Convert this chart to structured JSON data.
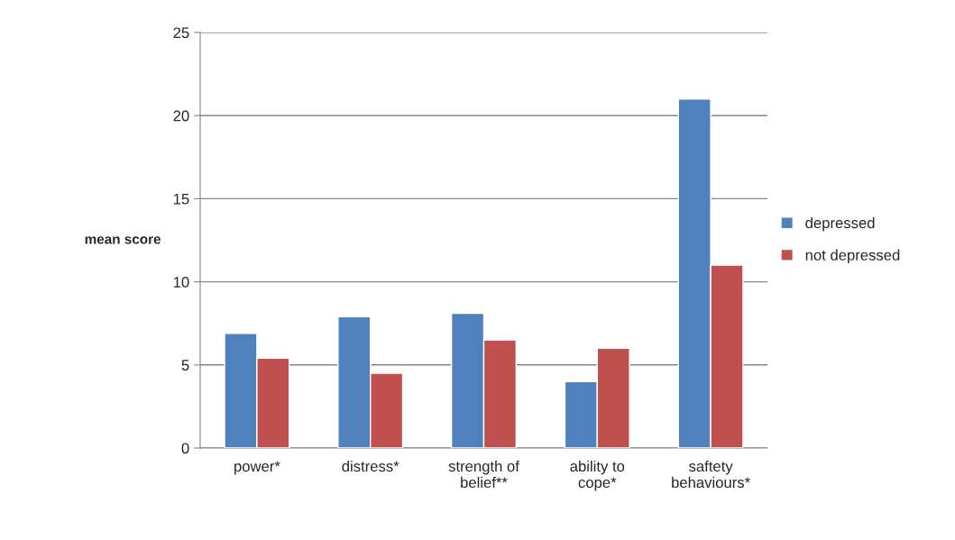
{
  "chart_data": {
    "type": "bar",
    "ylabel": "mean score",
    "categories": [
      "power*",
      "distress*",
      "strength of\nbelief**",
      "ability to\ncope*",
      "saftety\nbehaviours*"
    ],
    "series": [
      {
        "name": "depressed",
        "color": "#4f81bd",
        "values": [
          6.9,
          7.9,
          8.1,
          4.0,
          21
        ]
      },
      {
        "name": "not depressed",
        "color": "#c0504d",
        "values": [
          5.4,
          4.5,
          6.5,
          6.0,
          11
        ]
      }
    ],
    "ylim": [
      0,
      25
    ],
    "yticks": [
      0,
      5,
      10,
      15,
      20,
      25
    ],
    "grid": "y",
    "legend": "right"
  }
}
